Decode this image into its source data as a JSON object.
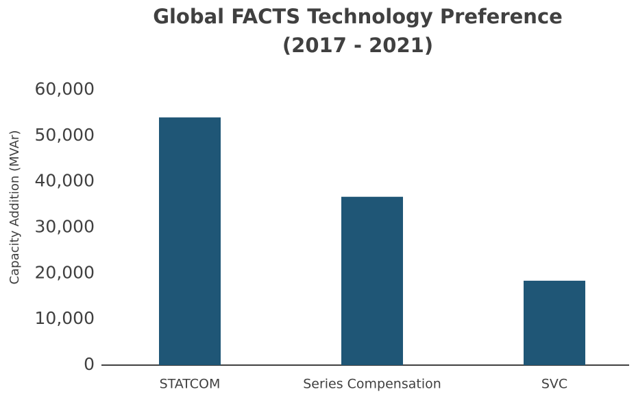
{
  "chart_data": {
    "type": "bar",
    "title": [
      "Global FACTS Technology Preference",
      "(2017 - 2021)"
    ],
    "y_label": "Capacity Addition (MVAr)",
    "categories": [
      "STATCOM",
      "Series Compensation",
      "SVC"
    ],
    "values": [
      54000,
      36700,
      18400
    ],
    "color": "#1f5676",
    "ylim": [
      0,
      60000
    ],
    "yticks": [
      0,
      {
        "value": 10000,
        "label": "10,000"
      },
      {
        "value": 20000,
        "label": "20,000"
      },
      {
        "value": 30000,
        "label": "30,000"
      },
      {
        "value": 40000,
        "label": "40,000"
      },
      {
        "value": 50000,
        "label": "50,000"
      },
      {
        "value": 60000,
        "label": "60,000"
      }
    ],
    "grid": false
  }
}
